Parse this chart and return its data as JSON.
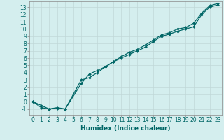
{
  "title": "",
  "xlabel": "Humidex (Indice chaleur)",
  "bg_color": "#d4eeee",
  "grid_color": "#c0d8d8",
  "line_color": "#006666",
  "spine_color": "#888888",
  "xlim": [
    -0.5,
    23.5
  ],
  "ylim": [
    -1.8,
    13.8
  ],
  "xticks": [
    0,
    1,
    2,
    3,
    4,
    5,
    6,
    7,
    8,
    9,
    10,
    11,
    12,
    13,
    14,
    15,
    16,
    17,
    18,
    19,
    20,
    21,
    22,
    23
  ],
  "yticks": [
    -1,
    0,
    1,
    2,
    3,
    4,
    5,
    6,
    7,
    8,
    9,
    10,
    11,
    12,
    13
  ],
  "line1_x": [
    0,
    1,
    2,
    3,
    4,
    6,
    7,
    8,
    9,
    10,
    11,
    12,
    13,
    14,
    15,
    16,
    17,
    18,
    19,
    20,
    21,
    22,
    23
  ],
  "line1_y": [
    0,
    -0.8,
    -1.0,
    -0.9,
    -1.0,
    3.0,
    3.3,
    4.0,
    4.8,
    5.5,
    6.0,
    6.5,
    7.0,
    7.5,
    8.3,
    9.0,
    9.3,
    9.7,
    10.0,
    10.3,
    12.0,
    13.0,
    13.3
  ],
  "line2_x": [
    0,
    1,
    2,
    3,
    4,
    6,
    7,
    8,
    9,
    10,
    11,
    12,
    13,
    14,
    15,
    16,
    17,
    18,
    19,
    20,
    21,
    22,
    23
  ],
  "line2_y": [
    0,
    -0.5,
    -1.0,
    -0.8,
    -1.0,
    2.5,
    3.8,
    4.3,
    4.8,
    5.5,
    6.2,
    6.8,
    7.2,
    7.8,
    8.5,
    9.2,
    9.5,
    10.0,
    10.2,
    10.8,
    12.2,
    13.2,
    13.5
  ],
  "marker": "D",
  "markersize": 2.0,
  "linewidth": 0.9,
  "tick_fontsize": 5.5,
  "xlabel_fontsize": 6.5
}
